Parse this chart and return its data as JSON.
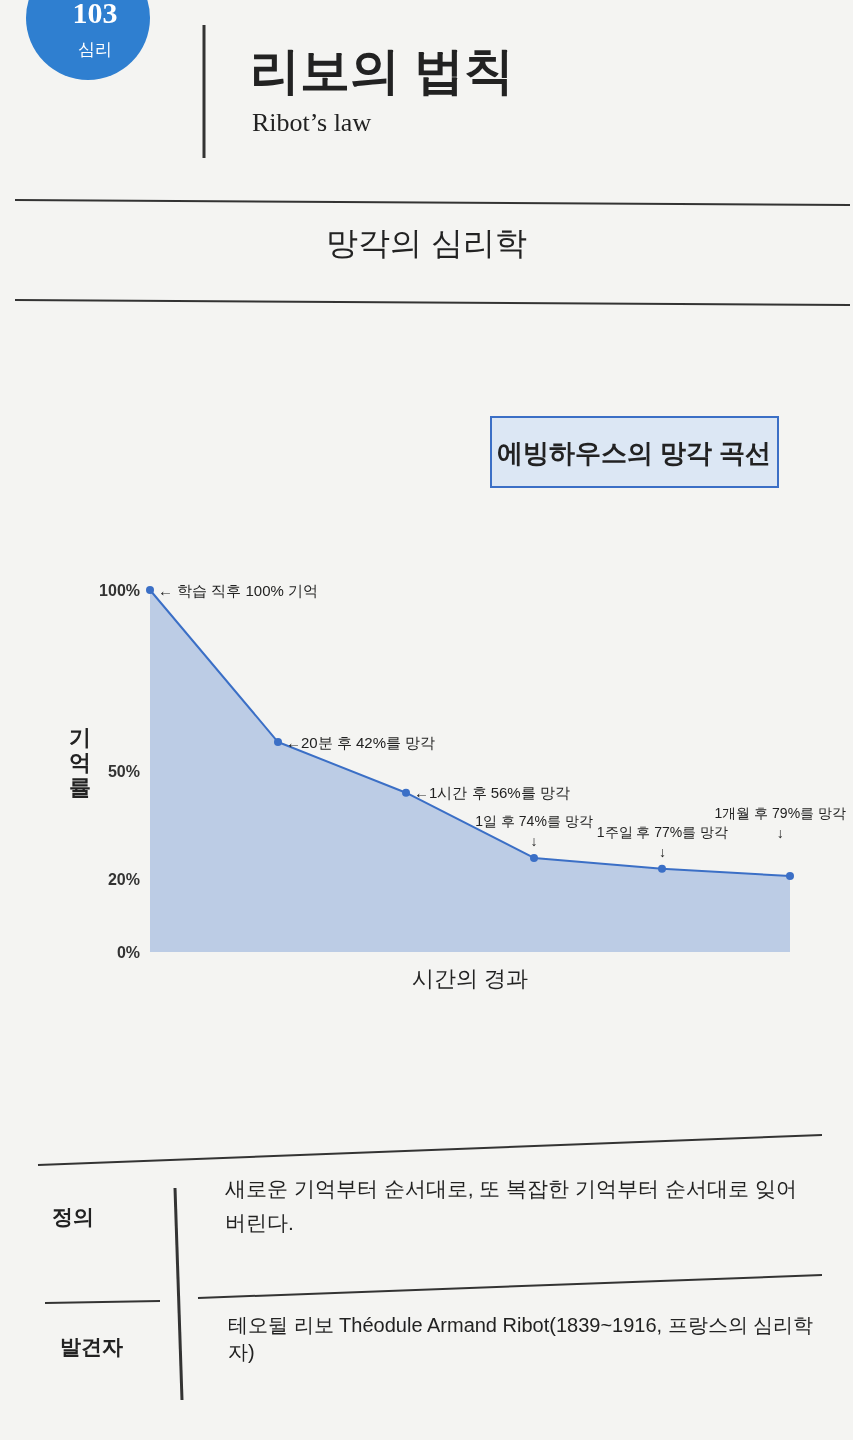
{
  "chart_data": {
    "type": "area",
    "title": "에빙하우스의 망각 곡선",
    "xlabel": "시간의 경과",
    "ylabel": "기억률",
    "categories": [
      null,
      null,
      null,
      null,
      null,
      null
    ],
    "series": [
      {
        "color": "#3b6fc6",
        "values": [
          100,
          58,
          44,
          26,
          23,
          21
        ]
      }
    ],
    "ylim": [
      0,
      100
    ],
    "yticks": [
      {
        "value": 0,
        "label": "0%"
      },
      {
        "value": 20,
        "label": "20%"
      },
      {
        "value": 50,
        "label": "50%"
      },
      {
        "value": 100,
        "label": "100%"
      }
    ],
    "marker": "circle",
    "grid": false,
    "tick_labels": "y",
    "annotations": [
      "103",
      "심리",
      "리보의 법칙",
      "Ribot’s law",
      "망각의 심리학",
      "정의",
      "새로운 기억부터 순서대로, 또 복잡한 기억부터 순서대로 잊어버린다.",
      "발견자",
      "테오뒬 리보 Théodule Armand Ribot(1839~1916, 프랑스의 심리학자)",
      "← 학습 직후 100% 기억",
      "←20분 후 42%를 망각",
      "←1시간 후 56%를 망각",
      "1일 후 74%를 망각\n↓",
      "1주일 후 77%를 망각\n↓",
      "1개월 후 79%를 망각\n↓"
    ]
  }
}
